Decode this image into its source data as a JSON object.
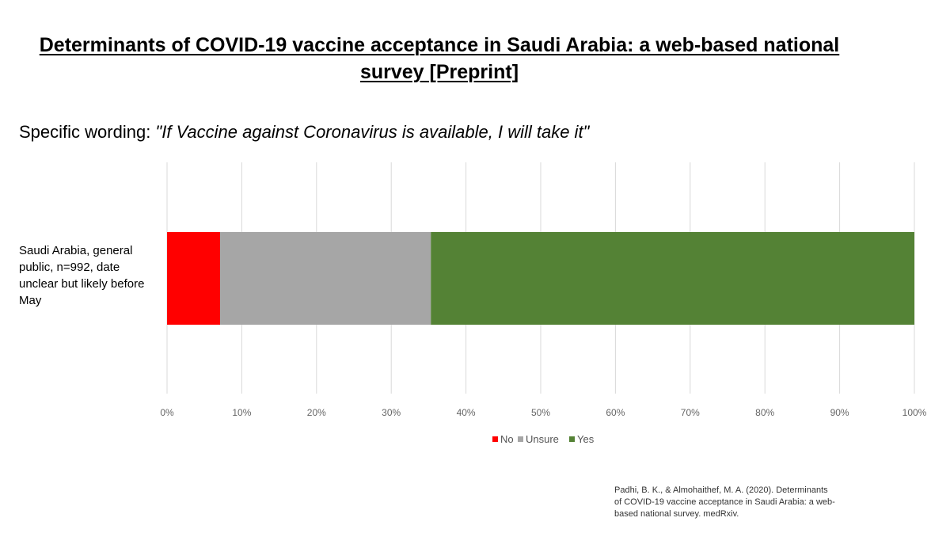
{
  "header": {
    "title_line1": "Determinants of COVID-19 vaccine acceptance in Saudi Arabia: a web-based national",
    "title_line2": "survey [Preprint]",
    "subtitle_prefix": "Specific wording: ",
    "subtitle_quote": "\"If Vaccine against Coronavirus is available, I will take it\""
  },
  "chart_data": {
    "type": "bar",
    "orientation": "horizontal",
    "stacked": "100%",
    "categories": [
      "Saudi Arabia, general public, n=992, date unclear but likely before May"
    ],
    "series": [
      {
        "name": "No",
        "values": [
          7.1
        ],
        "color": "#ff0000"
      },
      {
        "name": "Unsure",
        "values": [
          28.2
        ],
        "color": "#a6a6a6"
      },
      {
        "name": "Yes",
        "values": [
          64.7
        ],
        "color": "#548235"
      }
    ],
    "x_ticks": [
      "0%",
      "10%",
      "20%",
      "30%",
      "40%",
      "50%",
      "60%",
      "70%",
      "80%",
      "90%",
      "100%"
    ],
    "xlim": [
      0,
      100
    ],
    "grid": true,
    "legend_position": "bottom"
  },
  "citation": {
    "line1": "Padhi, B. K., & Almohaithef, M. A. (2020). Determinants",
    "line2": "of COVID-19 vaccine acceptance in Saudi Arabia: a web-",
    "line3": "based national survey. medRxiv."
  }
}
